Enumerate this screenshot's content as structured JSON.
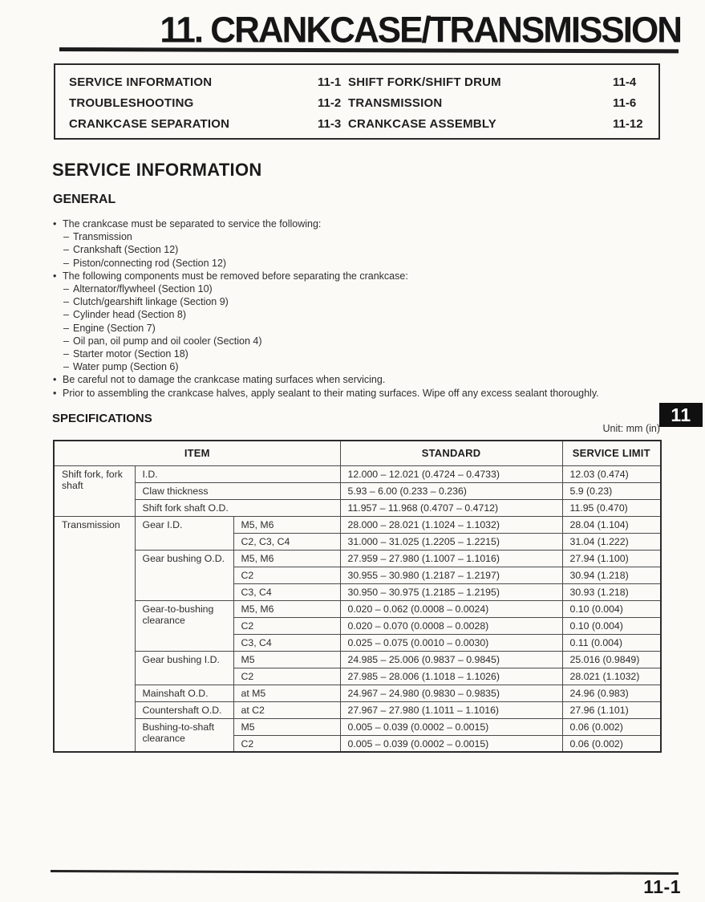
{
  "page": {
    "chapter_title": "11. CRANKCASE/TRANSMISSION",
    "section_tab": "11",
    "page_number": "11-1",
    "unit_note": "Unit: mm (in)",
    "colors": {
      "ink": "#242424",
      "tab_background": "#101010",
      "tab_text": "#fdfdfd"
    }
  },
  "toc": {
    "left": [
      {
        "label": "SERVICE INFORMATION",
        "page": "11-1"
      },
      {
        "label": "TROUBLESHOOTING",
        "page": "11-2"
      },
      {
        "label": "CRANKCASE SEPARATION",
        "page": "11-3"
      }
    ],
    "right": [
      {
        "label": "SHIFT FORK/SHIFT DRUM",
        "page": "11-4"
      },
      {
        "label": "TRANSMISSION",
        "page": "11-6"
      },
      {
        "label": "CRANKCASE ASSEMBLY",
        "page": "11-12"
      }
    ]
  },
  "service_information": {
    "heading": "SERVICE INFORMATION",
    "general_heading": "GENERAL",
    "bullets": [
      {
        "text": "The crankcase must be separated to service the following:",
        "subs": [
          "Transmission",
          "Crankshaft (Section 12)",
          "Piston/connecting rod (Section 12)"
        ]
      },
      {
        "text": "The following components must be removed before separating the crankcase:",
        "subs": [
          "Alternator/flywheel (Section 10)",
          "Clutch/gearshift linkage (Section 9)",
          "Cylinder head (Section 8)",
          "Engine (Section 7)",
          "Oil pan, oil pump and oil cooler (Section 4)",
          "Starter motor (Section 18)",
          "Water pump (Section 6)"
        ]
      },
      {
        "text": "Be careful not to damage the crankcase mating surfaces when servicing.",
        "subs": []
      },
      {
        "text": "Prior to assembling the crankcase halves, apply sealant to their mating surfaces.  Wipe off any excess sealant thoroughly.",
        "subs": []
      }
    ]
  },
  "specifications": {
    "heading": "SPECIFICATIONS",
    "table": {
      "header": {
        "item": "ITEM",
        "standard": "STANDARD",
        "service_limit": "SERVICE LIMIT"
      },
      "rows": [
        {
          "cells": [
            {
              "text": "Shift fork, fork shaft",
              "rowspan": 3,
              "type": "group"
            },
            {
              "text": "I.D.",
              "colspan": 2,
              "type": "item"
            },
            {
              "text": "12.000 – 12.021 (0.4724 – 0.4733)",
              "type": "standard"
            },
            {
              "text": "12.03 (0.474)",
              "type": "limit"
            }
          ]
        },
        {
          "cells": [
            {
              "text": "Claw thickness",
              "colspan": 2,
              "type": "item"
            },
            {
              "text": "5.93 – 6.00 (0.233 – 0.236)",
              "type": "standard"
            },
            {
              "text": "5.9 (0.23)",
              "type": "limit"
            }
          ]
        },
        {
          "cells": [
            {
              "text": "Shift fork shaft O.D.",
              "colspan": 2,
              "type": "item"
            },
            {
              "text": "11.957 – 11.968 (0.4707 – 0.4712)",
              "type": "standard"
            },
            {
              "text": "11.95 (0.470)",
              "type": "limit"
            }
          ]
        },
        {
          "cells": [
            {
              "text": "Transmission",
              "rowspan": 14,
              "type": "group"
            },
            {
              "text": "Gear I.D.",
              "rowspan": 2,
              "type": "item"
            },
            {
              "text": "M5, M6",
              "type": "sub"
            },
            {
              "text": "28.000 – 28.021 (1.1024 – 1.1032)",
              "type": "standard"
            },
            {
              "text": "28.04 (1.104)",
              "type": "limit"
            }
          ]
        },
        {
          "cells": [
            {
              "text": "C2, C3, C4",
              "type": "sub"
            },
            {
              "text": "31.000 – 31.025 (1.2205 – 1.2215)",
              "type": "standard"
            },
            {
              "text": "31.04 (1.222)",
              "type": "limit"
            }
          ]
        },
        {
          "cells": [
            {
              "text": "Gear bushing O.D.",
              "rowspan": 3,
              "type": "item"
            },
            {
              "text": "M5, M6",
              "type": "sub"
            },
            {
              "text": "27.959 – 27.980 (1.1007 – 1.1016)",
              "type": "standard"
            },
            {
              "text": "27.94 (1.100)",
              "type": "limit"
            }
          ]
        },
        {
          "cells": [
            {
              "text": "C2",
              "type": "sub"
            },
            {
              "text": "30.955 – 30.980 (1.2187 – 1.2197)",
              "type": "standard"
            },
            {
              "text": "30.94 (1.218)",
              "type": "limit"
            }
          ]
        },
        {
          "cells": [
            {
              "text": "C3, C4",
              "type": "sub"
            },
            {
              "text": "30.950 – 30.975 (1.2185 – 1.2195)",
              "type": "standard"
            },
            {
              "text": "30.93 (1.218)",
              "type": "limit"
            }
          ]
        },
        {
          "cells": [
            {
              "text": "Gear-to-bushing clearance",
              "rowspan": 3,
              "type": "item"
            },
            {
              "text": "M5, M6",
              "type": "sub"
            },
            {
              "text": "0.020 – 0.062 (0.0008 – 0.0024)",
              "type": "standard"
            },
            {
              "text": "0.10 (0.004)",
              "type": "limit"
            }
          ]
        },
        {
          "cells": [
            {
              "text": "C2",
              "type": "sub"
            },
            {
              "text": "0.020 – 0.070 (0.0008 – 0.0028)",
              "type": "standard"
            },
            {
              "text": "0.10 (0.004)",
              "type": "limit"
            }
          ]
        },
        {
          "cells": [
            {
              "text": "C3, C4",
              "type": "sub"
            },
            {
              "text": "0.025 – 0.075 (0.0010 – 0.0030)",
              "type": "standard"
            },
            {
              "text": "0.11 (0.004)",
              "type": "limit"
            }
          ]
        },
        {
          "cells": [
            {
              "text": "Gear bushing I.D.",
              "rowspan": 2,
              "type": "item"
            },
            {
              "text": "M5",
              "type": "sub"
            },
            {
              "text": "24.985 – 25.006 (0.9837 – 0.9845)",
              "type": "standard"
            },
            {
              "text": "25.016 (0.9849)",
              "type": "limit"
            }
          ]
        },
        {
          "cells": [
            {
              "text": "C2",
              "type": "sub"
            },
            {
              "text": "27.985 – 28.006 (1.1018 – 1.1026)",
              "type": "standard"
            },
            {
              "text": "28.021 (1.1032)",
              "type": "limit"
            }
          ]
        },
        {
          "cells": [
            {
              "text": "Mainshaft O.D.",
              "type": "item"
            },
            {
              "text": "at M5",
              "type": "sub"
            },
            {
              "text": "24.967 – 24.980 (0.9830 – 0.9835)",
              "type": "standard"
            },
            {
              "text": "24.96 (0.983)",
              "type": "limit"
            }
          ]
        },
        {
          "cells": [
            {
              "text": "Countershaft O.D.",
              "type": "item"
            },
            {
              "text": "at C2",
              "type": "sub"
            },
            {
              "text": "27.967 – 27.980 (1.1011 – 1.1016)",
              "type": "standard"
            },
            {
              "text": "27.96 (1.101)",
              "type": "limit"
            }
          ]
        },
        {
          "cells": [
            {
              "text": "Bushing-to-shaft clearance",
              "rowspan": 2,
              "type": "item"
            },
            {
              "text": "M5",
              "type": "sub"
            },
            {
              "text": "0.005 – 0.039 (0.0002 – 0.0015)",
              "type": "standard"
            },
            {
              "text": "0.06 (0.002)",
              "type": "limit"
            }
          ]
        },
        {
          "cells": [
            {
              "text": "C2",
              "type": "sub"
            },
            {
              "text": "0.005 – 0.039 (0.0002 – 0.0015)",
              "type": "standard"
            },
            {
              "text": "0.06 (0.002)",
              "type": "limit"
            }
          ]
        }
      ]
    }
  }
}
